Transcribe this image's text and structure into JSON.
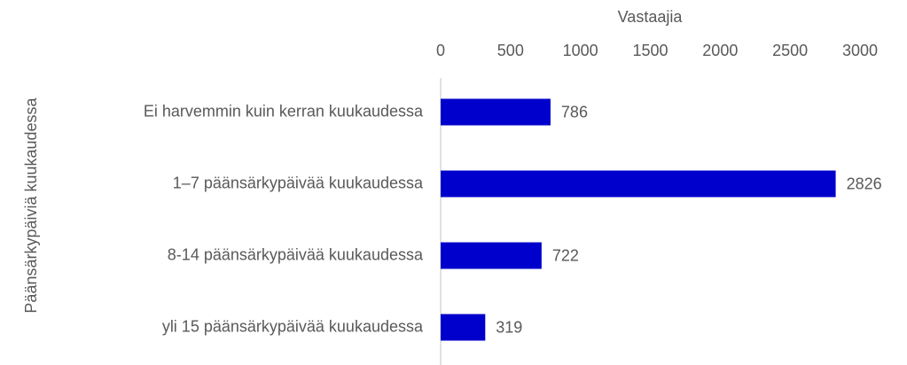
{
  "chart_data": {
    "type": "bar",
    "orientation": "horizontal",
    "x_label": "Vastaajia",
    "y_label": "Päänsärkypäiviä kuukaudessa",
    "categories": [
      "Ei harvemmin kuin kerran kuukaudessa",
      "1–7 päänsärkypäivää kuukaudessa",
      "8-14 päänsärkypäivää kuukaudessa",
      "yli 15 päänsärkypäivää kuukaudessa"
    ],
    "values": [
      786,
      2826,
      722,
      319
    ],
    "color": "#0000cc",
    "xlim": [
      0,
      3000
    ],
    "xticks": [
      0,
      500,
      1000,
      1500,
      2000,
      2500,
      3000
    ],
    "grid": false
  }
}
